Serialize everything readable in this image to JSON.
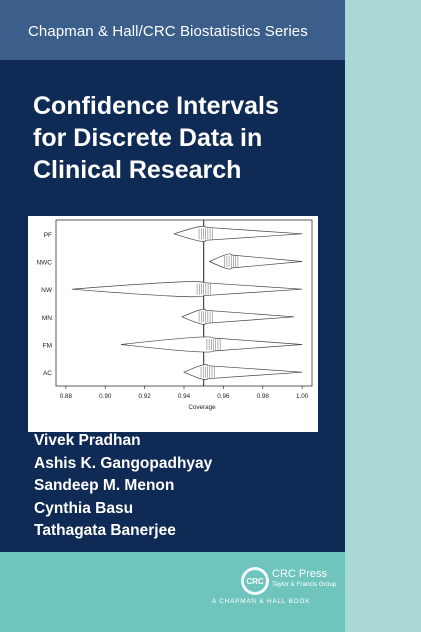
{
  "series": "Chapman & Hall/CRC Biostatistics Series",
  "title_lines": [
    "Confidence Intervals",
    "for Discrete Data in",
    "Clinical Research"
  ],
  "authors": [
    "Vivek Pradhan",
    "Ashis K. Gangopadhyay",
    "Sandeep M. Menon",
    "Cynthia Basu",
    "Tathagata Banerjee"
  ],
  "publisher": {
    "name": "CRC Press",
    "subline": "Taylor & Francis Group",
    "imprint": "A CHAPMAN & HALL BOOK",
    "logo_text": "CRC"
  },
  "colors": {
    "cover": "#0f2a55",
    "series_band": "#3b5f8a",
    "side_strip": "#a9d8d6",
    "bottom_band": "#6fc4be"
  },
  "chart_data": {
    "type": "violin",
    "xlabel": "Coverage",
    "xlim": [
      0.875,
      1.005
    ],
    "x_ticks": [
      "0.88",
      "0.90",
      "0.92",
      "0.94",
      "0.96",
      "0.98",
      "1.00"
    ],
    "reference_line": 0.95,
    "categories": [
      "PF",
      "NWC",
      "NW",
      "MN",
      "FM",
      "AC"
    ],
    "series": [
      {
        "label": "PF",
        "min": 0.935,
        "max": 1.0,
        "center": 0.951
      },
      {
        "label": "NWC",
        "min": 0.953,
        "max": 1.0,
        "center": 0.964
      },
      {
        "label": "NW",
        "min": 0.883,
        "max": 1.0,
        "center": 0.95
      },
      {
        "label": "MN",
        "min": 0.939,
        "max": 0.996,
        "center": 0.951
      },
      {
        "label": "FM",
        "min": 0.908,
        "max": 1.0,
        "center": 0.955
      },
      {
        "label": "AC",
        "min": 0.94,
        "max": 1.0,
        "center": 0.952
      }
    ]
  }
}
